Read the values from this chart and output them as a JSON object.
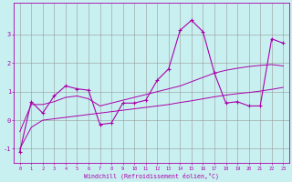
{
  "xlabel": "Windchill (Refroidissement éolien,°C)",
  "bg_color": "#c8f0f0",
  "line_color": "#aa00aa",
  "grid_color": "#999999",
  "x": [
    0,
    1,
    2,
    3,
    4,
    5,
    6,
    7,
    8,
    9,
    10,
    11,
    12,
    13,
    14,
    15,
    16,
    17,
    18,
    19,
    20,
    21,
    22,
    23
  ],
  "y_main": [
    -1.1,
    0.65,
    0.25,
    0.85,
    1.2,
    1.1,
    1.05,
    -0.15,
    -0.1,
    0.6,
    0.6,
    0.7,
    1.4,
    1.8,
    3.15,
    3.5,
    3.1,
    1.65,
    0.6,
    0.65,
    0.5,
    0.5,
    2.85,
    2.7
  ],
  "y_trend1": [
    -0.4,
    0.55,
    0.55,
    0.65,
    0.8,
    0.85,
    0.75,
    0.5,
    0.6,
    0.7,
    0.8,
    0.9,
    1.0,
    1.1,
    1.2,
    1.35,
    1.5,
    1.65,
    1.75,
    1.82,
    1.88,
    1.92,
    1.95,
    1.9
  ],
  "y_trend2": [
    -1.0,
    -0.25,
    0.0,
    0.05,
    0.1,
    0.15,
    0.2,
    0.25,
    0.3,
    0.35,
    0.4,
    0.45,
    0.5,
    0.55,
    0.62,
    0.68,
    0.75,
    0.82,
    0.88,
    0.93,
    0.97,
    1.02,
    1.08,
    1.15
  ],
  "ylim": [
    -1.5,
    4.1
  ],
  "yticks": [
    -1,
    0,
    1,
    2,
    3
  ],
  "xlim": [
    -0.5,
    23.5
  ],
  "xticks": [
    0,
    1,
    2,
    3,
    4,
    5,
    6,
    7,
    8,
    9,
    10,
    11,
    12,
    13,
    14,
    15,
    16,
    17,
    18,
    19,
    20,
    21,
    22,
    23
  ]
}
